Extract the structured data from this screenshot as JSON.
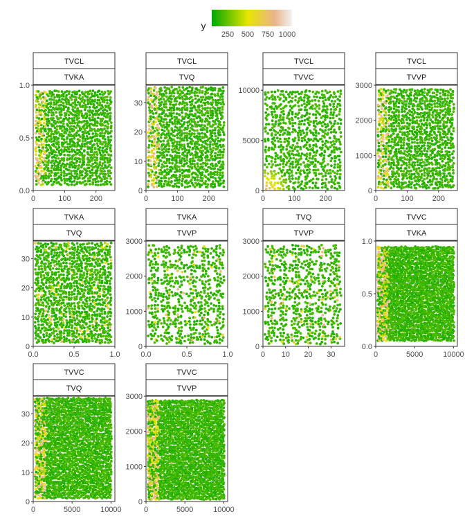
{
  "legend": {
    "title": "y",
    "breaks": [
      "250",
      "500",
      "750",
      "1000"
    ],
    "range": [
      0,
      1100
    ],
    "colors": [
      "#00a600",
      "#e6e600",
      "#eab38a",
      "#f2f2f2"
    ]
  },
  "chart_data": {
    "type": "scatter",
    "color_variable": "y",
    "panels": [
      {
        "strip_top": "TVCL",
        "strip_bottom": "TVKA",
        "xlim": [
          0,
          260
        ],
        "ylim": [
          0,
          1.0
        ],
        "xticks": [
          0,
          100,
          200
        ],
        "xtick_labels": [
          "0",
          "100",
          "200"
        ],
        "yticks": [
          0,
          0.5,
          1.0
        ],
        "ytick_labels": [
          "0.0",
          "0.5",
          "1.0"
        ],
        "ymin": 0.05,
        "ymax": 0.95,
        "pattern": "grid",
        "hot": "xlow"
      },
      {
        "strip_top": "TVCL",
        "strip_bottom": "TVQ",
        "xlim": [
          0,
          260
        ],
        "ylim": [
          0,
          36
        ],
        "xticks": [
          0,
          100,
          200
        ],
        "xtick_labels": [
          "0",
          "100",
          "200"
        ],
        "yticks": [
          0,
          10,
          20,
          30
        ],
        "ytick_labels": [
          "0",
          "10",
          "20",
          "30"
        ],
        "ymin": 1,
        "ymax": 35.5,
        "pattern": "grid",
        "hot": "xlow"
      },
      {
        "strip_top": "TVCL",
        "strip_bottom": "TVVC",
        "xlim": [
          0,
          260
        ],
        "ylim": [
          0,
          10500
        ],
        "xticks": [
          0,
          100,
          200
        ],
        "xtick_labels": [
          "0",
          "100",
          "200"
        ],
        "yticks": [
          0,
          5000,
          10000
        ],
        "ytick_labels": [
          "0",
          "5000",
          "10000"
        ],
        "ymin": 100,
        "ymax": 10000,
        "pattern": "diamond",
        "hot": "corner"
      },
      {
        "strip_top": "TVCL",
        "strip_bottom": "TVVP",
        "xlim": [
          0,
          260
        ],
        "ylim": [
          0,
          3000
        ],
        "xticks": [
          0,
          100,
          200
        ],
        "xtick_labels": [
          "0",
          "100",
          "200"
        ],
        "yticks": [
          0,
          1000,
          2000,
          3000
        ],
        "ytick_labels": [
          "0",
          "1000",
          "2000",
          "3000"
        ],
        "ymin": 50,
        "ymax": 2900,
        "pattern": "grid",
        "hot": "xlow"
      },
      {
        "strip_top": "TVKA",
        "strip_bottom": "TVQ",
        "xlim": [
          0,
          1.0
        ],
        "ylim": [
          0,
          36
        ],
        "xticks": [
          0,
          0.5,
          1.0
        ],
        "xtick_labels": [
          "0.0",
          "0.5",
          "1.0"
        ],
        "yticks": [
          0,
          10,
          20,
          30
        ],
        "ytick_labels": [
          "0",
          "10",
          "20",
          "30"
        ],
        "ymin": 1,
        "ymax": 35.5,
        "pattern": "grid",
        "hot": "scatter"
      },
      {
        "strip_top": "TVKA",
        "strip_bottom": "TVVP",
        "xlim": [
          0,
          1.0
        ],
        "ylim": [
          0,
          3000
        ],
        "xticks": [
          0,
          0.5,
          1.0
        ],
        "xtick_labels": [
          "0.0",
          "0.5",
          "1.0"
        ],
        "yticks": [
          0,
          1000,
          2000,
          3000
        ],
        "ytick_labels": [
          "0",
          "1000",
          "2000",
          "3000"
        ],
        "ymin": 50,
        "ymax": 2900,
        "pattern": "blob",
        "hot": "scatter"
      },
      {
        "strip_top": "TVQ",
        "strip_bottom": "TVVP",
        "xlim": [
          0,
          36
        ],
        "ylim": [
          0,
          3000
        ],
        "xticks": [
          0,
          10,
          20,
          30
        ],
        "xtick_labels": [
          "0",
          "10",
          "20",
          "30"
        ],
        "yticks": [
          0,
          1000,
          2000,
          3000
        ],
        "ytick_labels": [
          "0",
          "1000",
          "2000",
          "3000"
        ],
        "ymin": 50,
        "ymax": 2900,
        "pattern": "blob",
        "hot": "scatter"
      },
      {
        "strip_top": "TVVC",
        "strip_bottom": "TVKA",
        "xlim": [
          0,
          10500
        ],
        "ylim": [
          0,
          1.0
        ],
        "xticks": [
          0,
          5000,
          10000
        ],
        "xtick_labels": [
          "0",
          "5000",
          "10000"
        ],
        "yticks": [
          0,
          0.5,
          1.0
        ],
        "ytick_labels": [
          "0.0",
          "0.5",
          "1.0"
        ],
        "ymin": 0.05,
        "ymax": 0.95,
        "pattern": "dense",
        "hot": "xlow"
      },
      {
        "strip_top": "TVVC",
        "strip_bottom": "TVQ",
        "xlim": [
          0,
          10500
        ],
        "ylim": [
          0,
          36
        ],
        "xticks": [
          0,
          5000,
          10000
        ],
        "xtick_labels": [
          "0",
          "5000",
          "10000"
        ],
        "yticks": [
          0,
          10,
          20,
          30
        ],
        "ytick_labels": [
          "0",
          "10",
          "20",
          "30"
        ],
        "ymin": 1,
        "ymax": 35.5,
        "pattern": "dense",
        "hot": "xlow"
      },
      {
        "strip_top": "TVVC",
        "strip_bottom": "TVVP",
        "xlim": [
          0,
          10500
        ],
        "ylim": [
          0,
          3000
        ],
        "xticks": [
          0,
          5000,
          10000
        ],
        "xtick_labels": [
          "0",
          "5000",
          "10000"
        ],
        "yticks": [
          0,
          1000,
          2000,
          3000
        ],
        "ytick_labels": [
          "0",
          "1000",
          "2000",
          "3000"
        ],
        "ymin": 50,
        "ymax": 2900,
        "pattern": "dense",
        "hot": "xlow"
      }
    ]
  }
}
